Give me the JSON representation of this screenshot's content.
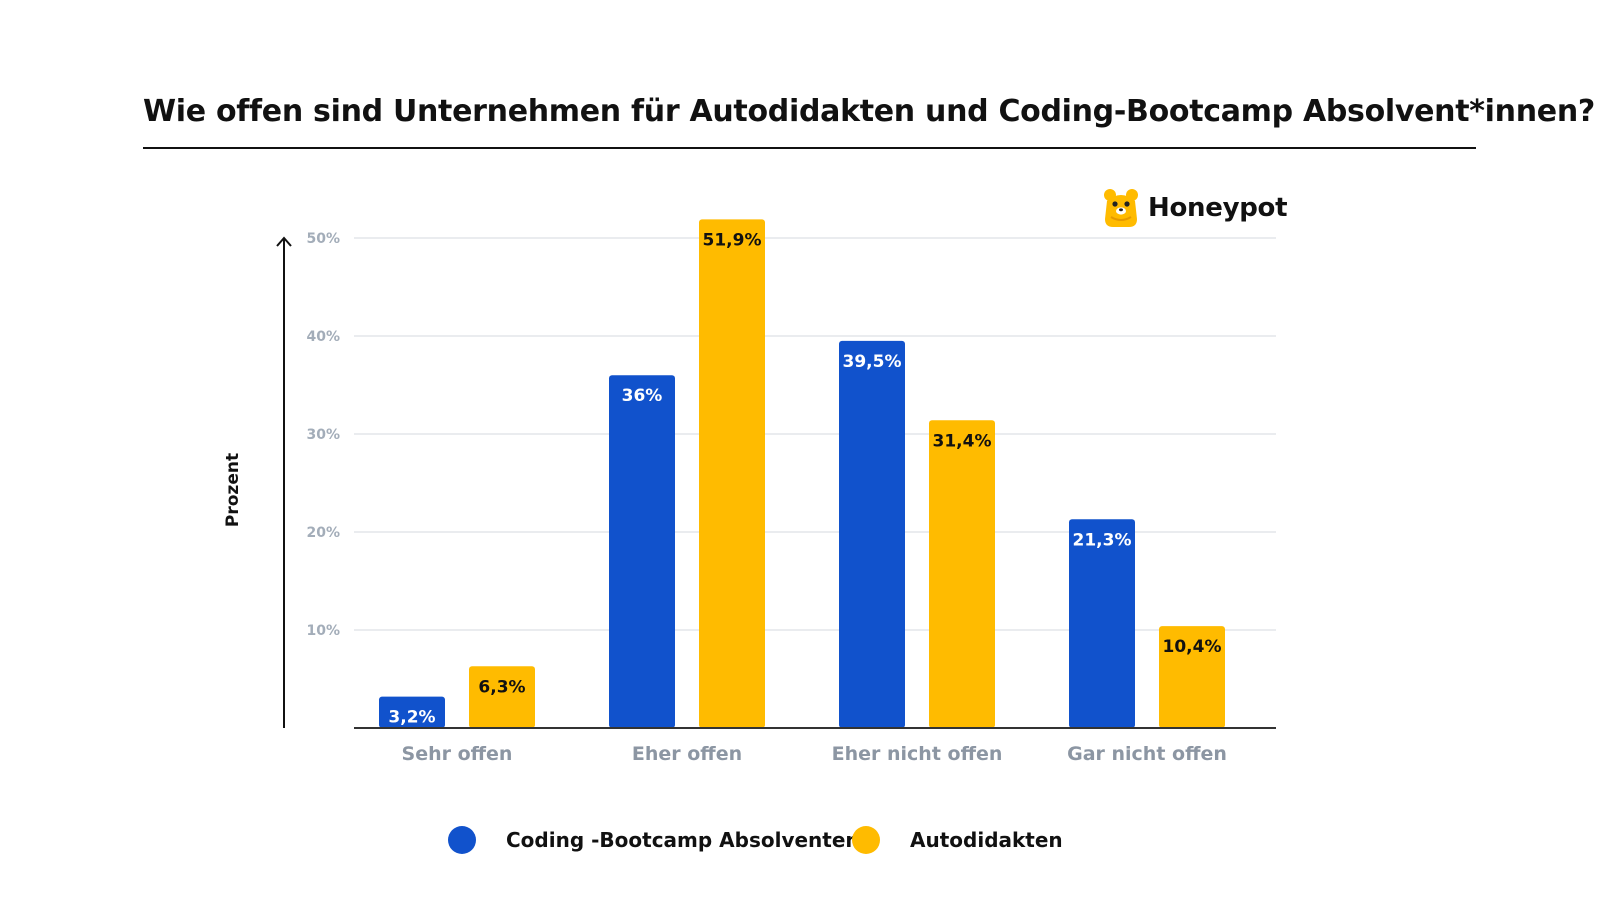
{
  "chart_data": {
    "type": "bar",
    "title": "Wie offen sind Unternehmen für Autodidakten und Coding-Bootcamp Absolvent*innen?",
    "ylabel": "Prozent",
    "xlabel": "",
    "categories": [
      "Sehr offen",
      "Eher offen",
      "Eher nicht offen",
      "Gar nicht offen"
    ],
    "series": [
      {
        "name": "Coding -Bootcamp Absolventen",
        "color": "#1152CC",
        "values": [
          3.2,
          36,
          39.5,
          21.3
        ],
        "labels": [
          "3,2%",
          "36%",
          "39,5%",
          "21,3%"
        ]
      },
      {
        "name": "Autodidakten",
        "color": "#FFBB00",
        "values": [
          6.3,
          51.9,
          31.4,
          10.4
        ],
        "labels": [
          "6,3%",
          "51,9%",
          "31,4%",
          "10,4%"
        ]
      }
    ],
    "ylim": [
      0,
      50
    ],
    "yticks": [
      10,
      20,
      30,
      40,
      50
    ],
    "ytick_labels": [
      "10%",
      "20%",
      "30%",
      "40%",
      "50%"
    ],
    "grid": true,
    "legend_position": "bottom"
  },
  "brand": {
    "name": "Honeypot",
    "logo_icon": "bear-logo-icon"
  }
}
